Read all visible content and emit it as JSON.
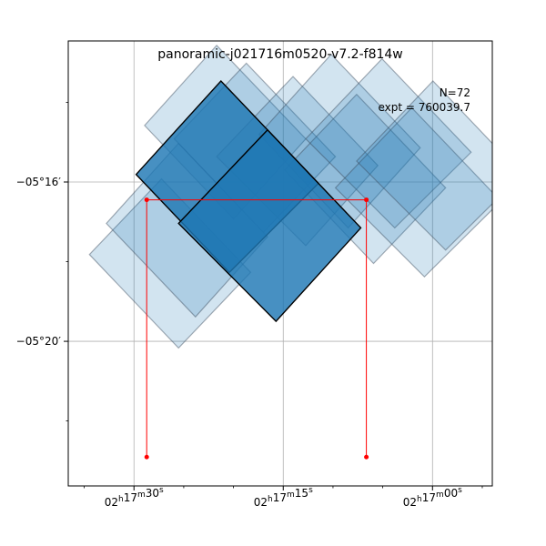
{
  "chart_data": {
    "type": "footprint-map",
    "title": "panoramic-j021716m0520-v7.2-f814w",
    "annotations": {
      "count": "N=72",
      "exposure": "expt = 760039.7"
    },
    "x_axis": {
      "ticks": [
        {
          "h": "02",
          "m": "17",
          "s": "30",
          "pos": 0.155
        },
        {
          "h": "02",
          "m": "17",
          "s": "15",
          "pos": 0.507
        },
        {
          "h": "02",
          "m": "17",
          "s": "00",
          "pos": 0.859
        }
      ]
    },
    "y_axis": {
      "ticks": [
        {
          "label": "−05°16′",
          "pos": 0.683
        },
        {
          "label": "−05°20′",
          "pos": 0.325
        }
      ]
    },
    "grid": true,
    "colors": {
      "footprint": "#1f77b4",
      "footprint_edge": "#3a4a5a",
      "dark_edge": "#000000",
      "guide": "#ff0000"
    },
    "light_footprints": [
      [
        [
          0.05,
          0.52
        ],
        [
          0.22,
          0.69
        ],
        [
          0.43,
          0.48
        ],
        [
          0.26,
          0.31
        ]
      ],
      [
        [
          0.09,
          0.59
        ],
        [
          0.26,
          0.77
        ],
        [
          0.47,
          0.56
        ],
        [
          0.3,
          0.38
        ]
      ],
      [
        [
          0.18,
          0.81
        ],
        [
          0.35,
          0.99
        ],
        [
          0.56,
          0.78
        ],
        [
          0.39,
          0.6
        ]
      ],
      [
        [
          0.25,
          0.78
        ],
        [
          0.42,
          0.95
        ],
        [
          0.63,
          0.74
        ],
        [
          0.46,
          0.57
        ]
      ],
      [
        [
          0.35,
          0.74
        ],
        [
          0.53,
          0.92
        ],
        [
          0.73,
          0.72
        ],
        [
          0.56,
          0.54
        ]
      ],
      [
        [
          0.45,
          0.79
        ],
        [
          0.62,
          0.97
        ],
        [
          0.83,
          0.76
        ],
        [
          0.66,
          0.58
        ]
      ],
      [
        [
          0.51,
          0.71
        ],
        [
          0.68,
          0.88
        ],
        [
          0.89,
          0.67
        ],
        [
          0.72,
          0.5
        ]
      ],
      [
        [
          0.56,
          0.78
        ],
        [
          0.74,
          0.96
        ],
        [
          0.95,
          0.75
        ],
        [
          0.77,
          0.58
        ]
      ],
      [
        [
          0.63,
          0.67
        ],
        [
          0.81,
          0.85
        ],
        [
          1.02,
          0.64
        ],
        [
          0.84,
          0.47
        ]
      ],
      [
        [
          0.68,
          0.73
        ],
        [
          0.86,
          0.91
        ],
        [
          1.07,
          0.7
        ],
        [
          0.89,
          0.53
        ]
      ]
    ],
    "dark_footprints": [
      [
        [
          0.16,
          0.7
        ],
        [
          0.36,
          0.91
        ],
        [
          0.59,
          0.68
        ],
        [
          0.38,
          0.48
        ]
      ],
      [
        [
          0.26,
          0.59
        ],
        [
          0.47,
          0.8
        ],
        [
          0.69,
          0.58
        ],
        [
          0.49,
          0.37
        ]
      ]
    ],
    "guide_polyline": [
      [
        0.185,
        0.065
      ],
      [
        0.185,
        0.643
      ],
      [
        0.703,
        0.643
      ],
      [
        0.703,
        0.065
      ]
    ]
  }
}
